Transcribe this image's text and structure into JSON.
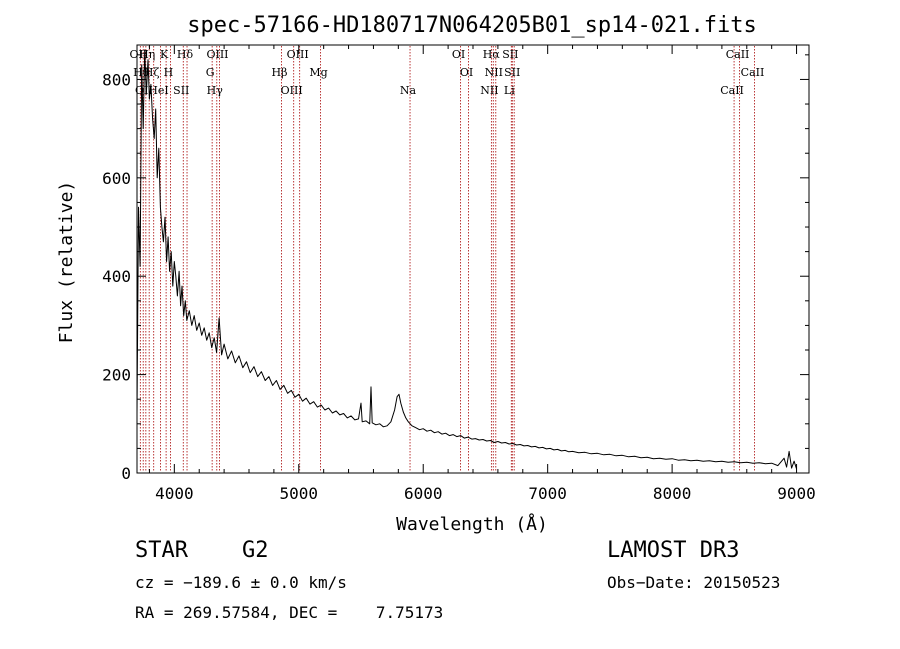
{
  "chart_data": {
    "type": "line",
    "title": "spec-57166-HD180717N064205B01_sp14-021.fits",
    "xlabel": "Wavelength (Å)",
    "ylabel": "Flux (relative)",
    "xlim": [
      3700,
      9100
    ],
    "ylim": [
      0,
      870
    ],
    "xticks": [
      4000,
      5000,
      6000,
      7000,
      8000,
      9000
    ],
    "yticks": [
      0,
      200,
      400,
      600,
      800
    ],
    "xtick_labels": [
      "4000",
      "5000",
      "6000",
      "7000",
      "8000",
      "9000"
    ],
    "ytick_labels": [
      "0",
      "200",
      "400",
      "600",
      "800"
    ],
    "grid": false,
    "series": [
      {
        "name": "flux",
        "color": "#000000",
        "points": [
          [
            3700,
            120
          ],
          [
            3712,
            540
          ],
          [
            3725,
            420
          ],
          [
            3738,
            830
          ],
          [
            3750,
            700
          ],
          [
            3762,
            860
          ],
          [
            3775,
            770
          ],
          [
            3788,
            840
          ],
          [
            3800,
            760
          ],
          [
            3812,
            790
          ],
          [
            3825,
            720
          ],
          [
            3838,
            680
          ],
          [
            3850,
            740
          ],
          [
            3862,
            600
          ],
          [
            3875,
            660
          ],
          [
            3888,
            540
          ],
          [
            3900,
            500
          ],
          [
            3912,
            470
          ],
          [
            3925,
            520
          ],
          [
            3938,
            430
          ],
          [
            3950,
            480
          ],
          [
            3962,
            410
          ],
          [
            3975,
            450
          ],
          [
            3988,
            380
          ],
          [
            4000,
            430
          ],
          [
            4012,
            400
          ],
          [
            4025,
            360
          ],
          [
            4038,
            410
          ],
          [
            4050,
            340
          ],
          [
            4062,
            380
          ],
          [
            4075,
            320
          ],
          [
            4088,
            350
          ],
          [
            4100,
            310
          ],
          [
            4120,
            330
          ],
          [
            4140,
            300
          ],
          [
            4160,
            320
          ],
          [
            4180,
            290
          ],
          [
            4200,
            305
          ],
          [
            4220,
            280
          ],
          [
            4240,
            295
          ],
          [
            4260,
            270
          ],
          [
            4280,
            285
          ],
          [
            4300,
            255
          ],
          [
            4320,
            275
          ],
          [
            4340,
            245
          ],
          [
            4360,
            315
          ],
          [
            4380,
            240
          ],
          [
            4400,
            262
          ],
          [
            4430,
            232
          ],
          [
            4460,
            248
          ],
          [
            4490,
            224
          ],
          [
            4520,
            238
          ],
          [
            4550,
            214
          ],
          [
            4580,
            226
          ],
          [
            4610,
            204
          ],
          [
            4640,
            216
          ],
          [
            4670,
            196
          ],
          [
            4700,
            206
          ],
          [
            4730,
            188
          ],
          [
            4760,
            196
          ],
          [
            4790,
            178
          ],
          [
            4820,
            188
          ],
          [
            4850,
            170
          ],
          [
            4880,
            178
          ],
          [
            4910,
            162
          ],
          [
            4940,
            168
          ],
          [
            4970,
            154
          ],
          [
            5000,
            160
          ],
          [
            5030,
            146
          ],
          [
            5060,
            152
          ],
          [
            5090,
            140
          ],
          [
            5120,
            145
          ],
          [
            5150,
            134
          ],
          [
            5180,
            138
          ],
          [
            5210,
            128
          ],
          [
            5240,
            132
          ],
          [
            5270,
            122
          ],
          [
            5300,
            126
          ],
          [
            5330,
            118
          ],
          [
            5360,
            121
          ],
          [
            5390,
            112
          ],
          [
            5420,
            116
          ],
          [
            5450,
            108
          ],
          [
            5480,
            110
          ],
          [
            5500,
            142
          ],
          [
            5510,
            104
          ],
          [
            5540,
            106
          ],
          [
            5570,
            100
          ],
          [
            5580,
            175
          ],
          [
            5590,
            102
          ],
          [
            5620,
            98
          ],
          [
            5650,
            100
          ],
          [
            5680,
            94
          ],
          [
            5710,
            96
          ],
          [
            5740,
            104
          ],
          [
            5770,
            128
          ],
          [
            5790,
            155
          ],
          [
            5805,
            160
          ],
          [
            5820,
            142
          ],
          [
            5840,
            124
          ],
          [
            5860,
            112
          ],
          [
            5880,
            104
          ],
          [
            5910,
            96
          ],
          [
            5940,
            92
          ],
          [
            5970,
            88
          ],
          [
            6000,
            90
          ],
          [
            6030,
            85
          ],
          [
            6060,
            87
          ],
          [
            6090,
            82
          ],
          [
            6120,
            84
          ],
          [
            6150,
            79
          ],
          [
            6180,
            81
          ],
          [
            6210,
            76
          ],
          [
            6240,
            78
          ],
          [
            6270,
            74
          ],
          [
            6300,
            76
          ],
          [
            6330,
            71
          ],
          [
            6360,
            73
          ],
          [
            6390,
            69
          ],
          [
            6420,
            70
          ],
          [
            6450,
            67
          ],
          [
            6480,
            68
          ],
          [
            6510,
            65
          ],
          [
            6540,
            66
          ],
          [
            6570,
            62
          ],
          [
            6600,
            64
          ],
          [
            6630,
            61
          ],
          [
            6660,
            62
          ],
          [
            6690,
            59
          ],
          [
            6720,
            60
          ],
          [
            6750,
            57
          ],
          [
            6780,
            58
          ],
          [
            6810,
            55
          ],
          [
            6840,
            56
          ],
          [
            6870,
            53
          ],
          [
            6900,
            54
          ],
          [
            6930,
            51
          ],
          [
            6960,
            52
          ],
          [
            6990,
            49
          ],
          [
            7020,
            50
          ],
          [
            7050,
            47
          ],
          [
            7080,
            48
          ],
          [
            7110,
            45
          ],
          [
            7140,
            46
          ],
          [
            7170,
            43
          ],
          [
            7200,
            44
          ],
          [
            7250,
            41
          ],
          [
            7300,
            42
          ],
          [
            7350,
            39
          ],
          [
            7400,
            40
          ],
          [
            7450,
            37
          ],
          [
            7500,
            38
          ],
          [
            7550,
            35
          ],
          [
            7600,
            36
          ],
          [
            7650,
            33
          ],
          [
            7700,
            34
          ],
          [
            7750,
            31
          ],
          [
            7800,
            32
          ],
          [
            7850,
            29
          ],
          [
            7900,
            30
          ],
          [
            7950,
            28
          ],
          [
            8000,
            29
          ],
          [
            8050,
            26
          ],
          [
            8100,
            27
          ],
          [
            8150,
            25
          ],
          [
            8200,
            26
          ],
          [
            8250,
            24
          ],
          [
            8300,
            25
          ],
          [
            8350,
            23
          ],
          [
            8400,
            24
          ],
          [
            8450,
            22
          ],
          [
            8500,
            23
          ],
          [
            8550,
            21
          ],
          [
            8600,
            22
          ],
          [
            8650,
            20
          ],
          [
            8700,
            21
          ],
          [
            8750,
            19
          ],
          [
            8800,
            20
          ],
          [
            8850,
            15
          ],
          [
            8900,
            30
          ],
          [
            8920,
            12
          ],
          [
            8940,
            44
          ],
          [
            8960,
            10
          ],
          [
            8980,
            24
          ],
          [
            9000,
            8
          ]
        ]
      }
    ],
    "line_color": "#b22222",
    "lines": [
      {
        "x": 3727,
        "label": "OII"
      },
      {
        "x": 3750,
        "label": "Hθ"
      },
      {
        "x": 3771,
        "label": "OII"
      },
      {
        "x": 3798,
        "label": "Hη"
      },
      {
        "x": 3834,
        "label": "Hζ"
      },
      {
        "x": 3889,
        "label": "HeI"
      },
      {
        "x": 3934,
        "label": "K"
      },
      {
        "x": 3969,
        "label": "H"
      },
      {
        "x": 4072,
        "label": "SII"
      },
      {
        "x": 4102,
        "label": "Hδ"
      },
      {
        "x": 4304,
        "label": "G"
      },
      {
        "x": 4341,
        "label": "Hγ"
      },
      {
        "x": 4363,
        "label": "OIII"
      },
      {
        "x": 4861,
        "label": "Hβ"
      },
      {
        "x": 4959,
        "label": "OIII"
      },
      {
        "x": 5007,
        "label": "OIII"
      },
      {
        "x": 5175,
        "label": "Mg"
      },
      {
        "x": 5894,
        "label": "Na"
      },
      {
        "x": 6300,
        "label": "OI"
      },
      {
        "x": 6364,
        "label": "OI"
      },
      {
        "x": 6548,
        "label": "NII"
      },
      {
        "x": 6563,
        "label": "Hα"
      },
      {
        "x": 6583,
        "label": "NII"
      },
      {
        "x": 6708,
        "label": "Li"
      },
      {
        "x": 6716,
        "label": "SII"
      },
      {
        "x": 6731,
        "label": "SII"
      },
      {
        "x": 8498,
        "label": "CaII"
      },
      {
        "x": 8542,
        "label": "CaII"
      },
      {
        "x": 8662,
        "label": "CaII"
      }
    ],
    "legend": "none"
  },
  "info": {
    "object_class": "STAR",
    "subclass": "G2",
    "survey": "LAMOST DR3",
    "redshift_text": "cz = −189.6 ± 0.0 km/s",
    "obs_date_text": "Obs−Date: 20150523",
    "coords_text": "RA = 269.57584, DEC =    7.75173"
  }
}
